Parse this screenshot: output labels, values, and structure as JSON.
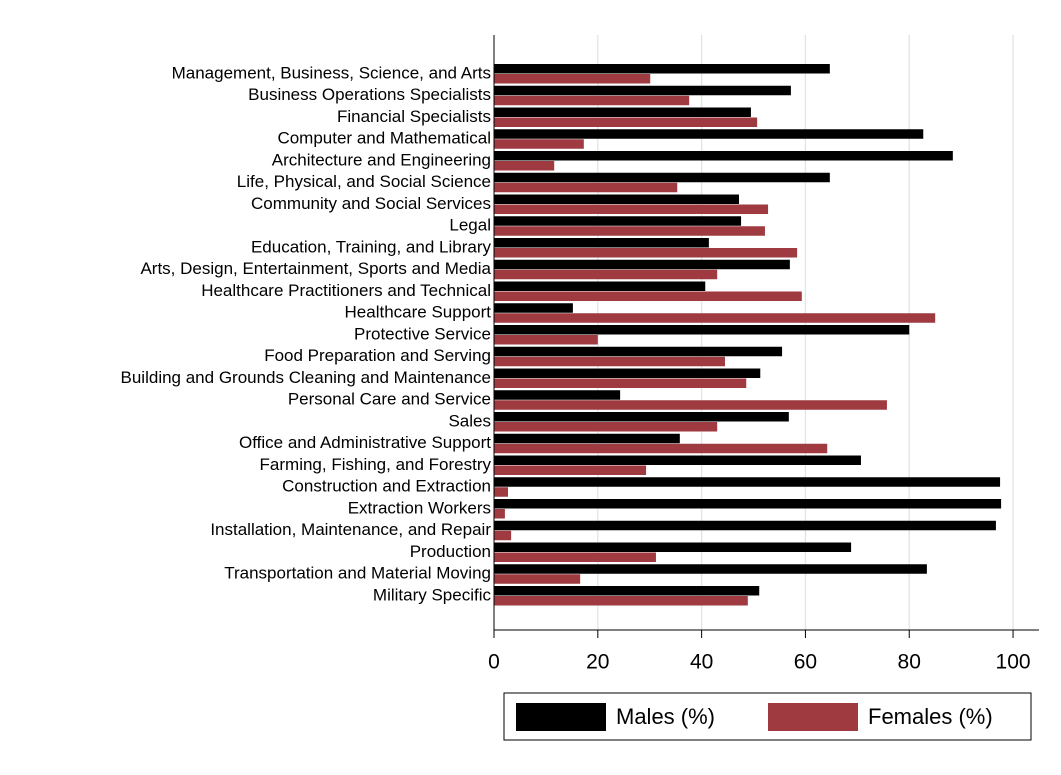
{
  "chart_data": {
    "type": "hbar",
    "categories": [
      "Management, Business, Science, and Arts",
      "Business Operations Specialists",
      "Financial Specialists",
      "Computer and Mathematical",
      "Architecture and Engineering",
      "Life, Physical, and Social Science",
      "Community and Social Services",
      "Legal",
      "Education, Training, and Library",
      "Arts, Design, Entertainment, Sports and Media",
      "Healthcare Practitioners and Technical",
      "Healthcare Support",
      "Protective Service",
      "Food Preparation and Serving",
      "Building and Grounds Cleaning and Maintenance",
      "Personal Care and Service",
      "Sales",
      "Office and Administrative Support",
      "Farming, Fishing, and Forestry",
      "Construction and Extraction",
      "Extraction Workers",
      "Installation, Maintenance, and Repair",
      "Production",
      "Transportation and Material Moving",
      "Military Specific"
    ],
    "series": [
      {
        "name": "Males (%)",
        "color": "#000000",
        "values": [
          64.7,
          57.2,
          49.5,
          82.7,
          88.4,
          64.7,
          47.2,
          47.6,
          41.4,
          57.0,
          40.7,
          15.2,
          80.0,
          55.5,
          51.3,
          24.3,
          56.8,
          35.8,
          70.7,
          97.5,
          97.7,
          96.7,
          68.8,
          83.4,
          51.1
        ]
      },
      {
        "name": "Females (%)",
        "color": "#9e3a40",
        "values": [
          30.1,
          37.6,
          50.7,
          17.3,
          11.6,
          35.3,
          52.8,
          52.2,
          58.4,
          43.0,
          59.3,
          85.0,
          20.0,
          44.5,
          48.6,
          75.7,
          43.0,
          64.2,
          29.3,
          2.7,
          2.1,
          3.3,
          31.2,
          16.6,
          48.9
        ]
      }
    ],
    "xlim": [
      0,
      105
    ],
    "xticks": [
      0,
      20,
      40,
      60,
      80,
      100
    ],
    "grid": true,
    "legend": "bottom"
  }
}
